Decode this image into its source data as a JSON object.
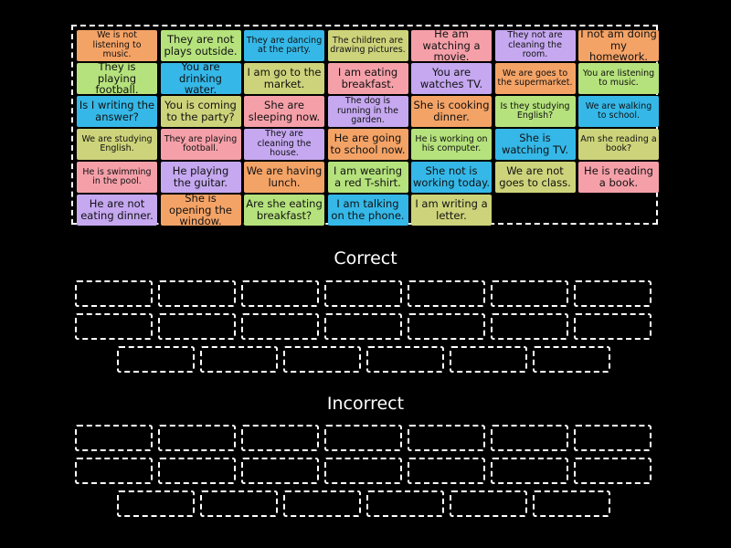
{
  "tiles": [
    {
      "text": "We is not listening to music.",
      "color": "#f4a366",
      "small": true
    },
    {
      "text": "They are not plays outside.",
      "color": "#b5e27c",
      "small": false
    },
    {
      "text": "They are dancing at the party.",
      "color": "#35b8e8",
      "small": true
    },
    {
      "text": "The children are drawing pictures.",
      "color": "#cdd37a",
      "small": true
    },
    {
      "text": "He am watching a movie.",
      "color": "#f5a0a9",
      "small": false
    },
    {
      "text": "They not are cleaning the room.",
      "color": "#c5a8f0",
      "small": true
    },
    {
      "text": "I not am doing my homework.",
      "color": "#f4a366",
      "small": false
    },
    {
      "text": "They is playing football.",
      "color": "#b5e27c",
      "small": false
    },
    {
      "text": "You are drinking water.",
      "color": "#35b8e8",
      "small": false
    },
    {
      "text": "I am go to the market.",
      "color": "#cdd37a",
      "small": false
    },
    {
      "text": "I am eating breakfast.",
      "color": "#f5a0a9",
      "small": false
    },
    {
      "text": "You are watches TV.",
      "color": "#c5a8f0",
      "small": false
    },
    {
      "text": "We are goes to the supermarket.",
      "color": "#f4a366",
      "small": true
    },
    {
      "text": "You are listening to music.",
      "color": "#b5e27c",
      "small": true
    },
    {
      "text": "Is I writing the answer?",
      "color": "#35b8e8",
      "small": false
    },
    {
      "text": "You is coming to the party?",
      "color": "#cdd37a",
      "small": false
    },
    {
      "text": "She are sleeping now.",
      "color": "#f5a0a9",
      "small": false
    },
    {
      "text": "The dog is running in the garden.",
      "color": "#c5a8f0",
      "small": true
    },
    {
      "text": "She is cooking dinner.",
      "color": "#f4a366",
      "small": false
    },
    {
      "text": "Is they studying English?",
      "color": "#b5e27c",
      "small": true
    },
    {
      "text": "We are walking to school.",
      "color": "#35b8e8",
      "small": true
    },
    {
      "text": "We are studying English.",
      "color": "#cdd37a",
      "small": true
    },
    {
      "text": "They are playing football.",
      "color": "#f5a0a9",
      "small": true
    },
    {
      "text": "They are cleaning the house.",
      "color": "#c5a8f0",
      "small": true
    },
    {
      "text": "He are going to school now.",
      "color": "#f4a366",
      "small": false
    },
    {
      "text": "He is working on his computer.",
      "color": "#b5e27c",
      "small": true
    },
    {
      "text": "She is watching TV.",
      "color": "#35b8e8",
      "small": false
    },
    {
      "text": "Am she reading a book?",
      "color": "#cdd37a",
      "small": true
    },
    {
      "text": "He is swimming in the pool.",
      "color": "#f5a0a9",
      "small": true
    },
    {
      "text": "He playing the guitar.",
      "color": "#c5a8f0",
      "small": false
    },
    {
      "text": "We are having lunch.",
      "color": "#f4a366",
      "small": false
    },
    {
      "text": "I am wearing a red T-shirt.",
      "color": "#b5e27c",
      "small": false
    },
    {
      "text": "She not is working today.",
      "color": "#35b8e8",
      "small": false
    },
    {
      "text": "We are not goes to class.",
      "color": "#cdd37a",
      "small": false
    },
    {
      "text": "He is reading a book.",
      "color": "#f5a0a9",
      "small": false
    },
    {
      "text": "He are not eating dinner.",
      "color": "#c5a8f0",
      "small": false
    },
    {
      "text": "She is opening the window.",
      "color": "#f4a366",
      "small": false
    },
    {
      "text": "Are she eating breakfast?",
      "color": "#b5e27c",
      "small": false
    },
    {
      "text": "I am talking on the phone.",
      "color": "#35b8e8",
      "small": false
    },
    {
      "text": "I am writing a letter.",
      "color": "#cdd37a",
      "small": false
    }
  ],
  "groups": [
    {
      "title": "Correct",
      "rows": [
        7,
        7,
        6
      ]
    },
    {
      "title": "Incorrect",
      "rows": [
        7,
        7,
        6
      ]
    }
  ]
}
